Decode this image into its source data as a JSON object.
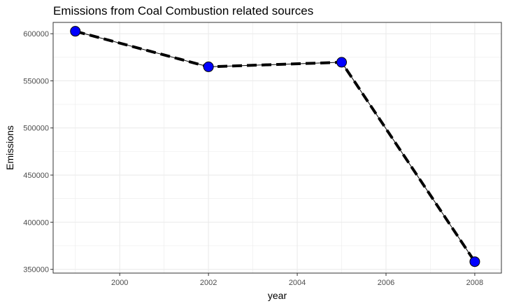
{
  "chart_data": {
    "type": "line",
    "title": "Emissions from Coal Combustion related sources",
    "xlabel": "year",
    "ylabel": "Emissions",
    "x": [
      1999,
      2002,
      2005,
      2008
    ],
    "series": [
      {
        "values": [
          602600,
          564900,
          569700,
          358100
        ]
      }
    ],
    "xlim": [
      1998.5,
      2008.6
    ],
    "ylim": [
      346000,
      612000
    ],
    "x_ticks": [
      2000,
      2002,
      2004,
      2006,
      2008
    ],
    "y_ticks": [
      350000,
      400000,
      450000,
      500000,
      550000,
      600000
    ],
    "x_tick_labels": [
      "2000",
      "2002",
      "2004",
      "2006",
      "2008"
    ],
    "y_tick_labels": [
      "350000",
      "400000",
      "450000",
      "500000",
      "550000",
      "600000"
    ],
    "grid": true,
    "legend": "none",
    "colors": {
      "point_fill": "#0000ff",
      "point_stroke": "#000000",
      "line": "#000000",
      "grid": "#ebebeb",
      "panel_border": "#333333"
    }
  }
}
